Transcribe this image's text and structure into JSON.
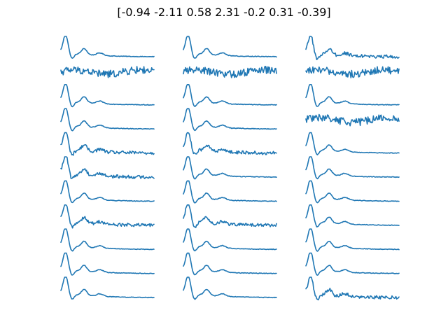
{
  "chart_data": {
    "type": "line",
    "title": "[-0.94 -2.11  0.58  2.31 -0.2   0.31 -0.39]",
    "xlabel": "",
    "ylabel": "",
    "axes_visible": false,
    "grid": false,
    "legend": "none",
    "layout": "11 rows x 3 columns of small-multiple line plots",
    "series_color": "#1f77b4",
    "panels": [
      {
        "col": 1,
        "row": 1,
        "shape": "peak"
      },
      {
        "col": 1,
        "row": 2,
        "shape": "noisy"
      },
      {
        "col": 1,
        "row": 3,
        "shape": "peak"
      },
      {
        "col": 1,
        "row": 4,
        "shape": "peak"
      },
      {
        "col": 1,
        "row": 5,
        "shape": "peak-noisy"
      },
      {
        "col": 1,
        "row": 6,
        "shape": "peak-noisy"
      },
      {
        "col": 1,
        "row": 7,
        "shape": "peak"
      },
      {
        "col": 1,
        "row": 8,
        "shape": "peak-noisy"
      },
      {
        "col": 1,
        "row": 9,
        "shape": "peak"
      },
      {
        "col": 1,
        "row": 10,
        "shape": "peak"
      },
      {
        "col": 1,
        "row": 11,
        "shape": "peak"
      },
      {
        "col": 2,
        "row": 1,
        "shape": "peak"
      },
      {
        "col": 2,
        "row": 2,
        "shape": "noisy"
      },
      {
        "col": 2,
        "row": 3,
        "shape": "peak"
      },
      {
        "col": 2,
        "row": 4,
        "shape": "peak"
      },
      {
        "col": 2,
        "row": 5,
        "shape": "peak-noisy"
      },
      {
        "col": 2,
        "row": 6,
        "shape": "peak"
      },
      {
        "col": 2,
        "row": 7,
        "shape": "peak"
      },
      {
        "col": 2,
        "row": 8,
        "shape": "peak-noisy"
      },
      {
        "col": 2,
        "row": 9,
        "shape": "peak"
      },
      {
        "col": 2,
        "row": 10,
        "shape": "peak"
      },
      {
        "col": 2,
        "row": 11,
        "shape": "peak"
      },
      {
        "col": 3,
        "row": 1,
        "shape": "peak-noisy"
      },
      {
        "col": 3,
        "row": 2,
        "shape": "noisy"
      },
      {
        "col": 3,
        "row": 3,
        "shape": "peak"
      },
      {
        "col": 3,
        "row": 4,
        "shape": "noisy"
      },
      {
        "col": 3,
        "row": 5,
        "shape": "peak"
      },
      {
        "col": 3,
        "row": 6,
        "shape": "peak"
      },
      {
        "col": 3,
        "row": 7,
        "shape": "peak"
      },
      {
        "col": 3,
        "row": 8,
        "shape": "peak"
      },
      {
        "col": 3,
        "row": 9,
        "shape": "peak"
      },
      {
        "col": 3,
        "row": 10,
        "shape": "peak"
      },
      {
        "col": 3,
        "row": 11,
        "shape": "peak-noisy"
      }
    ]
  }
}
